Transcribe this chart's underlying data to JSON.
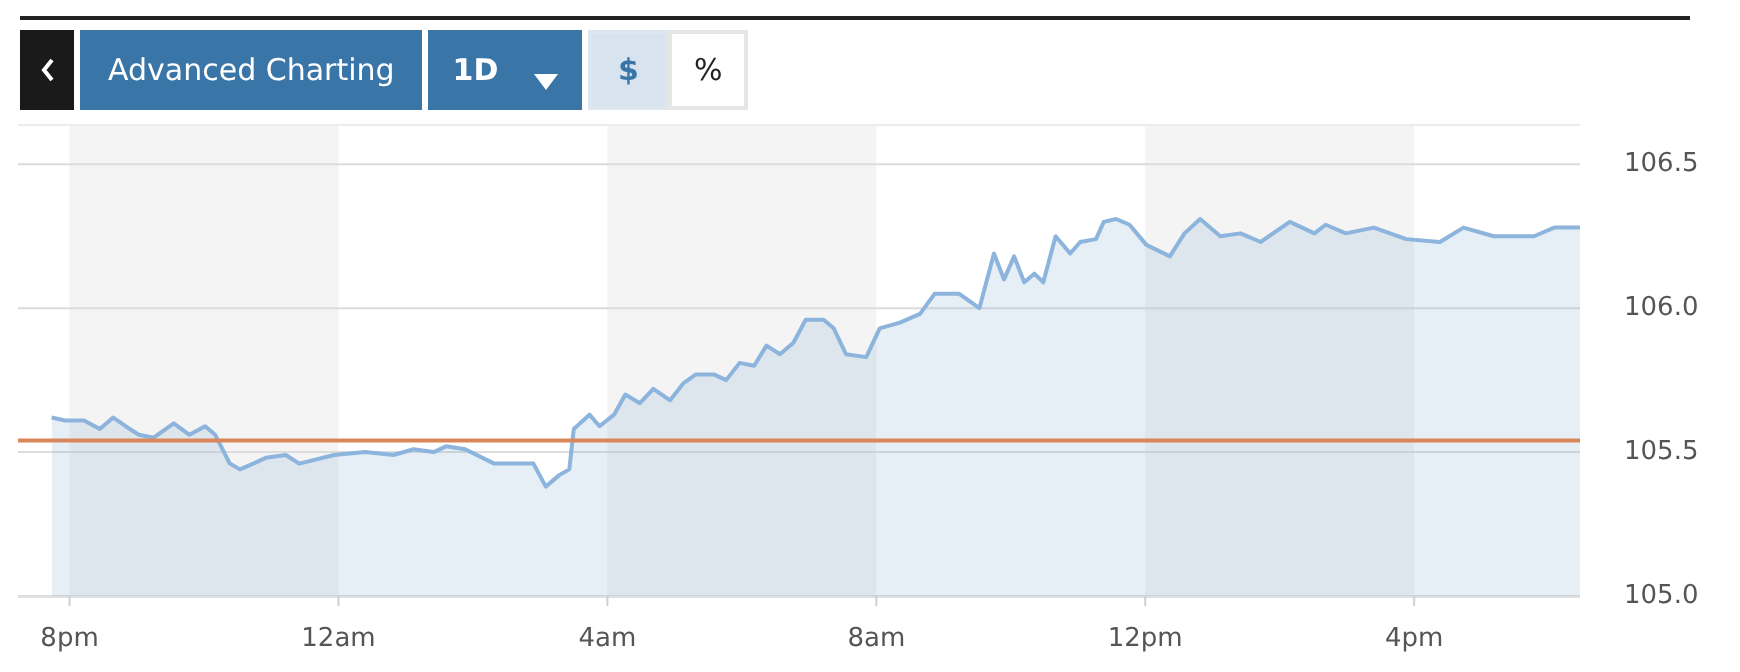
{
  "chart_data": {
    "type": "area",
    "x": [
      "--01-01T19:44",
      "--01-01T19:56",
      "--01-01T20:13",
      "--01-01T20:27",
      "--01-01T20:39",
      "--01-01T20:50",
      "--01-01T21:02",
      "--01-01T21:15",
      "--01-01T21:33",
      "--01-01T21:47",
      "--01-01T22:01",
      "--01-01T22:10",
      "--01-01T22:23",
      "--01-01T22:32",
      "--01-01T22:44",
      "--01-01T22:55",
      "--01-01T23:13",
      "--01-01T23:25",
      "--01-01T23:56",
      "--01-02T00:24",
      "--01-02T00:49",
      "--01-02T01:07",
      "--01-02T01:25",
      "--01-02T01:36",
      "--01-02T01:53",
      "--01-02T02:19",
      "--01-02T02:37",
      "--01-02T02:54",
      "--01-02T03:05",
      "--01-02T03:17",
      "--01-02T03:26",
      "--01-02T03:30",
      "--01-02T03:44",
      "--01-02T03:53",
      "--01-02T04:06",
      "--01-02T04:16",
      "--01-02T04:29",
      "--01-02T04:41",
      "--01-02T04:56",
      "--01-02T05:08",
      "--01-02T05:19",
      "--01-02T05:35",
      "--01-02T05:46",
      "--01-02T05:58",
      "--01-02T06:11",
      "--01-02T06:22",
      "--01-02T06:34",
      "--01-02T06:46",
      "--01-02T06:57",
      "--01-02T07:13",
      "--01-02T07:22",
      "--01-02T07:33",
      "--01-02T07:51",
      "--01-02T08:03",
      "--01-02T08:21",
      "--01-02T08:39",
      "--01-02T08:52",
      "--01-02T09:14",
      "--01-02T09:32",
      "--01-02T09:45",
      "--01-02T09:54",
      "--01-02T10:03",
      "--01-02T10:12",
      "--01-02T10:21",
      "--01-02T10:29",
      "--01-02T10:40",
      "--01-02T10:53",
      "--01-02T11:02",
      "--01-02T11:16",
      "--01-02T11:23",
      "--01-02T11:34",
      "--01-02T11:46",
      "--01-02T12:01",
      "--01-02T12:22",
      "--01-02T12:35",
      "--01-02T12:49",
      "--01-02T13:07",
      "--01-02T13:25",
      "--01-02T13:43",
      "--01-02T14:09",
      "--01-02T14:31",
      "--01-02T14:41",
      "--01-02T14:59",
      "--01-02T15:24",
      "--01-02T15:53",
      "--01-02T16:23",
      "--01-02T16:44",
      "--01-02T17:11",
      "--01-02T17:47",
      "--01-02T18:05",
      "--01-02T18:28"
    ],
    "series": [
      {
        "color": "#8cb4dc",
        "values": [
          105.62,
          105.61,
          105.61,
          105.58,
          105.62,
          105.59,
          105.56,
          105.55,
          105.6,
          105.56,
          105.59,
          105.56,
          105.46,
          105.44,
          105.46,
          105.48,
          105.49,
          105.46,
          105.49,
          105.5,
          105.49,
          105.51,
          105.5,
          105.52,
          105.51,
          105.46,
          105.46,
          105.46,
          105.38,
          105.42,
          105.44,
          105.58,
          105.63,
          105.59,
          105.63,
          105.7,
          105.67,
          105.72,
          105.68,
          105.74,
          105.77,
          105.77,
          105.75,
          105.81,
          105.8,
          105.87,
          105.84,
          105.88,
          105.96,
          105.96,
          105.93,
          105.84,
          105.83,
          105.93,
          105.95,
          105.98,
          106.05,
          106.05,
          106,
          106.19,
          106.1,
          106.18,
          106.09,
          106.12,
          106.09,
          106.25,
          106.19,
          106.23,
          106.24,
          106.3,
          106.31,
          106.29,
          106.22,
          106.18,
          106.26,
          106.31,
          106.25,
          106.26,
          106.23,
          106.3,
          106.26,
          106.29,
          106.26,
          106.28,
          106.24,
          106.23,
          106.28,
          106.25,
          106.25,
          106.28,
          106.28
        ]
      }
    ],
    "xlim": [
      "--01-01T19:14",
      "--01-02T18:28"
    ],
    "xticks": [
      {
        "value": "--01-01T20:00",
        "label": "8pm"
      },
      {
        "value": "--01-02T00:00",
        "label": "12am"
      },
      {
        "value": "--01-02T04:00",
        "label": "4am"
      },
      {
        "value": "--01-02T08:00",
        "label": "8am"
      },
      {
        "value": "--01-02T12:00",
        "label": "12pm"
      },
      {
        "value": "--01-02T16:00",
        "label": "4pm"
      }
    ],
    "ylim": [
      105.0,
      106.64
    ],
    "yticks": [
      {
        "value": 105,
        "label": "105.0"
      },
      {
        "value": 105.5,
        "label": "105.5"
      },
      {
        "value": 106,
        "label": "106.0"
      },
      {
        "value": 106.5,
        "label": "106.5"
      }
    ],
    "grid": "y",
    "legend": false,
    "marker": "none",
    "line_style": "solid",
    "bands": [
      {
        "axis": "x",
        "from": "--01-01T20:00",
        "to": "--01-02T00:00",
        "color": "#f4f4f4"
      },
      {
        "axis": "x",
        "from": "--01-02T04:00",
        "to": "--01-02T08:00",
        "color": "#f4f4f4"
      },
      {
        "axis": "x",
        "from": "--01-02T12:00",
        "to": "--01-02T16:00",
        "color": "#f4f4f4"
      }
    ],
    "ref_lines": [
      {
        "axis": "y",
        "value": 105.54,
        "color": "#d9875a"
      }
    ],
    "annotations": [
      "Advanced Charting",
      "1D",
      "$",
      "%"
    ]
  }
}
